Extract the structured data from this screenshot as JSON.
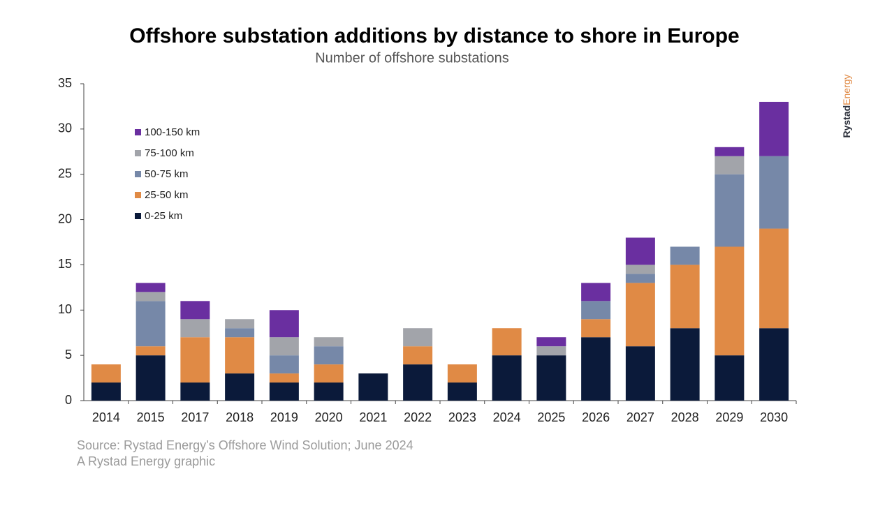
{
  "chart_data": {
    "type": "stacked-bar",
    "title": "Offshore substation additions by distance to shore in Europe",
    "subtitle": "Number of offshore substations",
    "categories": [
      "2014",
      "2015",
      "2017",
      "2018",
      "2019",
      "2020",
      "2021",
      "2022",
      "2023",
      "2024",
      "2025",
      "2026",
      "2027",
      "2028",
      "2029",
      "2030"
    ],
    "series": [
      {
        "name": "0-25 km",
        "color": "#0b1a3a",
        "values": [
          2,
          5,
          2,
          3,
          2,
          2,
          3,
          4,
          2,
          5,
          5,
          7,
          6,
          8,
          5,
          8
        ]
      },
      {
        "name": "25-50 km",
        "color": "#e08a45",
        "values": [
          2,
          1,
          5,
          4,
          1,
          2,
          0,
          2,
          2,
          3,
          0,
          2,
          7,
          7,
          12,
          11
        ]
      },
      {
        "name": "50-75 km",
        "color": "#7688a8",
        "values": [
          0,
          5,
          0,
          1,
          2,
          2,
          0,
          0,
          0,
          0,
          0,
          2,
          1,
          2,
          8,
          8
        ]
      },
      {
        "name": "75-100 km",
        "color": "#a2a4aa",
        "values": [
          0,
          1,
          2,
          1,
          2,
          1,
          0,
          2,
          0,
          0,
          1,
          0,
          1,
          0,
          2,
          0
        ]
      },
      {
        "name": "100-150 km",
        "color": "#6a2fa0",
        "values": [
          0,
          1,
          2,
          0,
          3,
          0,
          0,
          0,
          0,
          0,
          1,
          2,
          3,
          0,
          1,
          6
        ]
      }
    ],
    "ylim": [
      0,
      35
    ],
    "yticks": [
      0,
      5,
      10,
      15,
      20,
      25,
      30,
      35
    ],
    "grid": false,
    "legend": "upper-left",
    "source": "Source: Rystad Energy’s Offshore Wind Solution; June 2024",
    "credit": "A Rystad Energy graphic",
    "logo": {
      "first": "Rystad",
      "second": "Energy"
    }
  }
}
